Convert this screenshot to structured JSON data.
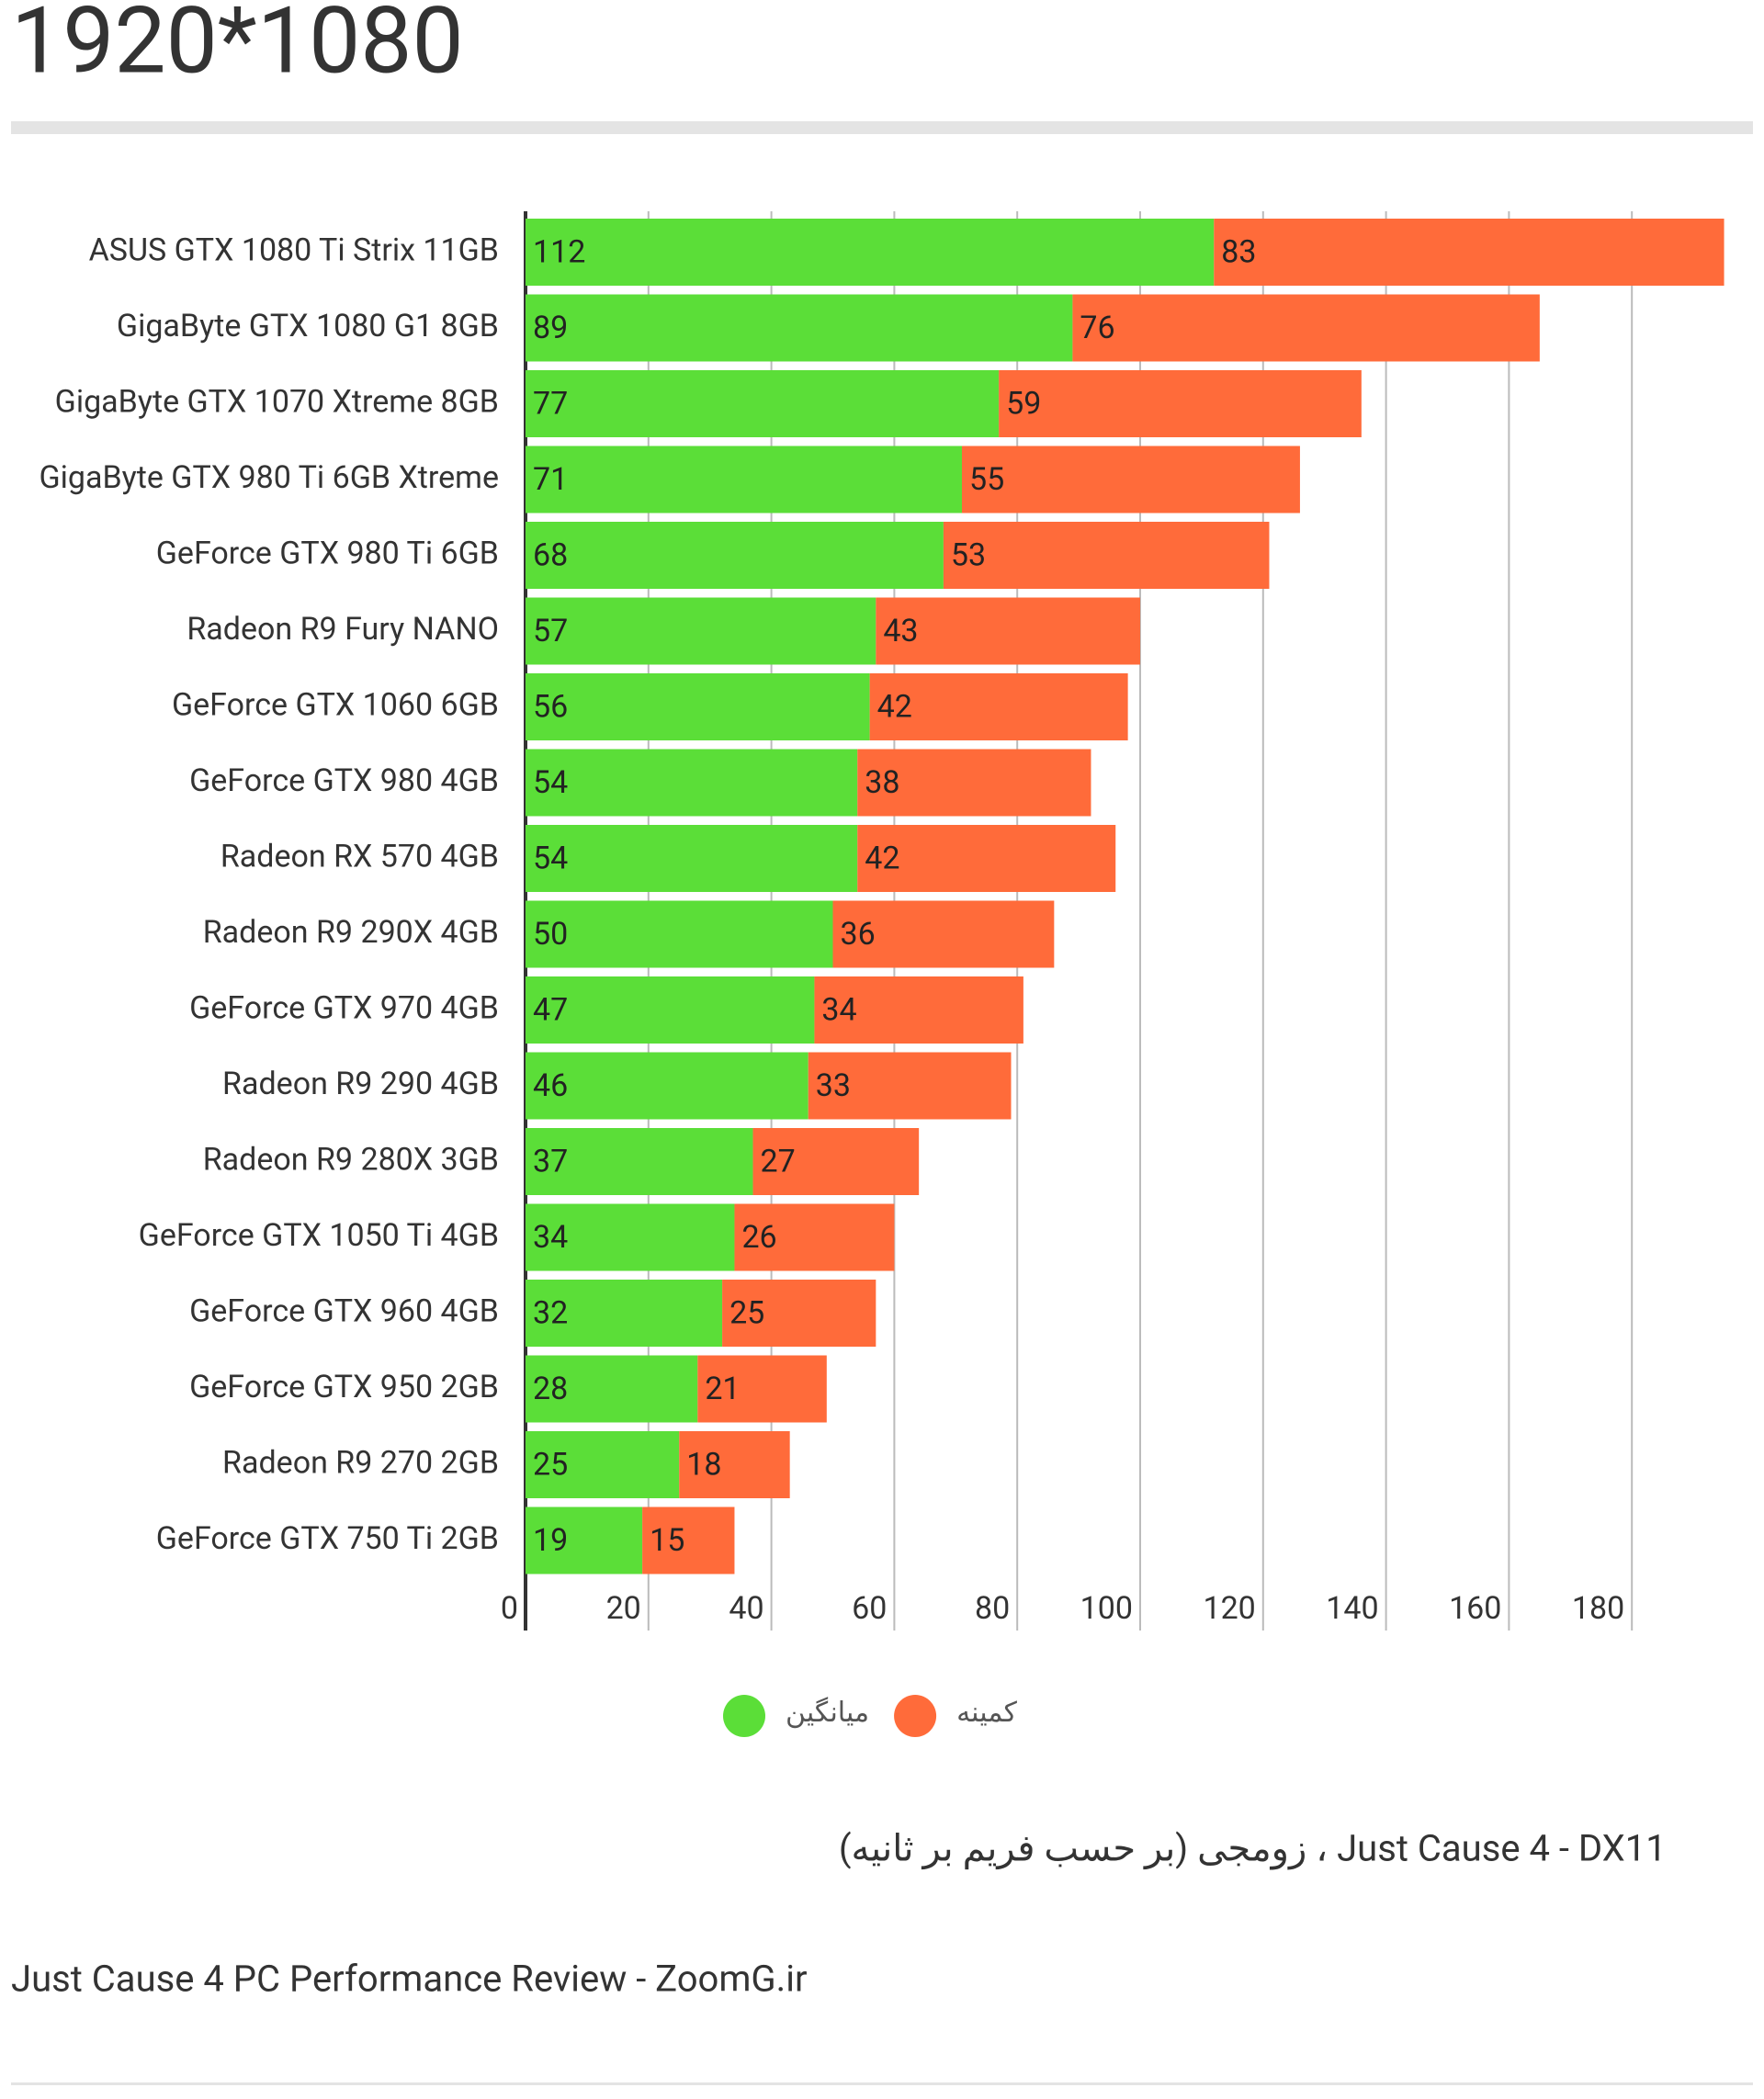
{
  "chart_data": {
    "type": "bar",
    "orientation": "horizontal",
    "stacked": true,
    "title": "1920*1080",
    "subtitle": "Just Cause 4 - DX11 ، زومجی (بر حسب فریم بر ثانیه)",
    "caption": "Just Cause 4 PC Performance Review - ZoomG.ir",
    "categories": [
      "ASUS GTX 1080 Ti Strix 11GB",
      "GigaByte GTX 1080 G1 8GB",
      "GigaByte GTX 1070 Xtreme 8GB",
      "GigaByte GTX 980 Ti 6GB Xtreme",
      "GeForce GTX 980 Ti 6GB",
      "Radeon R9 Fury NANO",
      "GeForce GTX 1060 6GB",
      "GeForce GTX 980 4GB",
      "Radeon RX 570 4GB",
      "Radeon R9 290X 4GB",
      "GeForce GTX 970 4GB",
      "Radeon R9 290 4GB",
      "Radeon R9 280X 3GB",
      "GeForce GTX 1050 Ti 4GB",
      "GeForce GTX 960 4GB",
      "GeForce GTX 950 2GB",
      "Radeon R9 270 2GB",
      "GeForce GTX 750 Ti 2GB"
    ],
    "series": [
      {
        "name": "میانگین",
        "color": "#5bde38",
        "values": [
          112,
          89,
          77,
          71,
          68,
          57,
          56,
          54,
          54,
          50,
          47,
          46,
          37,
          34,
          32,
          28,
          25,
          19
        ]
      },
      {
        "name": "کمینه",
        "color": "#ff6b3a",
        "values": [
          83,
          76,
          59,
          55,
          53,
          43,
          42,
          38,
          42,
          36,
          34,
          33,
          27,
          26,
          25,
          21,
          18,
          15
        ]
      }
    ],
    "xlim": [
      0,
      200
    ],
    "xticks": [
      0,
      20,
      40,
      60,
      80,
      100,
      120,
      140,
      160,
      180
    ],
    "grid": true
  }
}
